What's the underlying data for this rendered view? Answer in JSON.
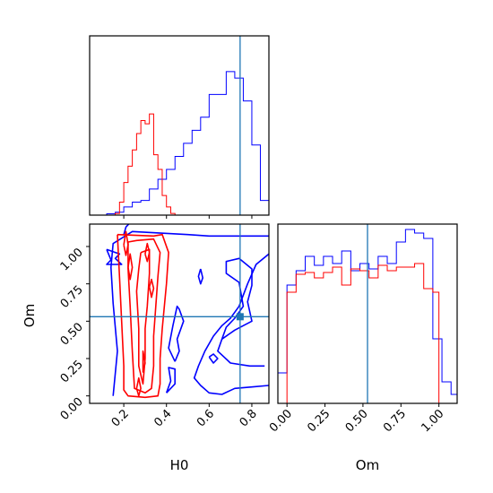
{
  "chart_data": {
    "type": "corner",
    "parameters": [
      "H0",
      "Om"
    ],
    "truth": {
      "H0": 0.745,
      "Om": 0.53
    },
    "colors": {
      "blue": "#0000ff",
      "red": "#ff0000",
      "truth": "#1f77b4"
    },
    "panels": [
      {
        "id": "H0-marginal",
        "type": "histogram",
        "xlim": [
          0.04,
          0.88
        ],
        "x_ticks": [
          0.2,
          0.4,
          0.6,
          0.8
        ],
        "series": [
          {
            "color": "blue",
            "edges": [
              0.12,
              0.16,
              0.2,
              0.24,
              0.28,
              0.32,
              0.36,
              0.4,
              0.44,
              0.48,
              0.52,
              0.56,
              0.6,
              0.64,
              0.68,
              0.72,
              0.76,
              0.8,
              0.84,
              0.88
            ],
            "counts": [
              0.008,
              0.018,
              0.05,
              0.08,
              0.09,
              0.16,
              0.22,
              0.28,
              0.36,
              0.44,
              0.52,
              0.6,
              0.74,
              0.74,
              0.88,
              0.84,
              0.7,
              0.43,
              0.09
            ]
          },
          {
            "color": "red",
            "edges": [
              0.16,
              0.18,
              0.2,
              0.22,
              0.24,
              0.26,
              0.28,
              0.3,
              0.32,
              0.34,
              0.36,
              0.38,
              0.4,
              0.42,
              0.44
            ],
            "counts": [
              0.01,
              0.08,
              0.2,
              0.3,
              0.4,
              0.5,
              0.58,
              0.56,
              0.62,
              0.37,
              0.28,
              0.12,
              0.05,
              0.01
            ]
          }
        ]
      },
      {
        "id": "H0-Om-joint",
        "type": "contour",
        "xlim": [
          0.04,
          0.88
        ],
        "ylim": [
          -0.05,
          1.15
        ],
        "x_ticks": [
          0.2,
          0.4,
          0.6,
          0.8
        ],
        "x_tick_labels": [
          "0.2",
          "0.4",
          "0.6",
          "0.8"
        ],
        "y_ticks": [
          0.0,
          0.25,
          0.5,
          0.75,
          1.0
        ],
        "y_tick_labels": [
          "0.00",
          "0.25",
          "0.50",
          "0.75",
          "1.00"
        ],
        "xlabel": "H0",
        "ylabel": "Om",
        "contours": [
          {
            "color": "blue",
            "points": [
              [
                0.15,
                0.0
              ],
              [
                0.17,
                0.3
              ],
              [
                0.15,
                0.62
              ],
              [
                0.14,
                0.86
              ],
              [
                0.15,
                1.02
              ],
              [
                0.24,
                1.1
              ],
              [
                0.5,
                1.08
              ],
              [
                0.6,
                1.07
              ],
              [
                0.7,
                1.07
              ],
              [
                0.88,
                1.07
              ]
            ]
          },
          {
            "color": "blue",
            "points": [
              [
                0.12,
                0.98
              ],
              [
                0.18,
                0.95
              ],
              [
                0.16,
                0.92
              ],
              [
                0.19,
                0.88
              ],
              [
                0.12,
                0.88
              ],
              [
                0.14,
                0.91
              ],
              [
                0.12,
                0.98
              ]
            ]
          },
          {
            "color": "blue",
            "points": [
              [
                0.2,
                1.08
              ],
              [
                0.21,
                1.13
              ],
              [
                0.23,
                1.16
              ]
            ]
          },
          {
            "color": "blue",
            "points": [
              [
                0.88,
                0.07
              ],
              [
                0.8,
                0.06
              ],
              [
                0.72,
                0.05
              ],
              [
                0.66,
                0.01
              ],
              [
                0.6,
                0.02
              ],
              [
                0.56,
                0.07
              ],
              [
                0.53,
                0.12
              ],
              [
                0.55,
                0.2
              ],
              [
                0.58,
                0.3
              ],
              [
                0.62,
                0.4
              ],
              [
                0.66,
                0.47
              ],
              [
                0.7,
                0.52
              ],
              [
                0.74,
                0.6
              ],
              [
                0.78,
                0.75
              ],
              [
                0.82,
                0.88
              ],
              [
                0.88,
                0.95
              ]
            ]
          },
          {
            "color": "blue",
            "points": [
              [
                0.86,
                0.2
              ],
              [
                0.79,
                0.2
              ],
              [
                0.7,
                0.22
              ],
              [
                0.64,
                0.3
              ],
              [
                0.66,
                0.38
              ],
              [
                0.72,
                0.44
              ],
              [
                0.76,
                0.47
              ],
              [
                0.8,
                0.5
              ],
              [
                0.78,
                0.63
              ],
              [
                0.8,
                0.74
              ],
              [
                0.8,
                0.85
              ],
              [
                0.74,
                0.92
              ],
              [
                0.68,
                0.9
              ],
              [
                0.68,
                0.82
              ],
              [
                0.74,
                0.76
              ],
              [
                0.76,
                0.6
              ],
              [
                0.72,
                0.52
              ],
              [
                0.68,
                0.46
              ],
              [
                0.66,
                0.38
              ]
            ]
          },
          {
            "color": "blue",
            "points": [
              [
                0.44,
                0.23
              ],
              [
                0.41,
                0.32
              ],
              [
                0.43,
                0.47
              ],
              [
                0.45,
                0.6
              ],
              [
                0.46,
                0.58
              ],
              [
                0.48,
                0.5
              ],
              [
                0.45,
                0.38
              ],
              [
                0.46,
                0.3
              ],
              [
                0.44,
                0.23
              ]
            ]
          },
          {
            "color": "blue",
            "points": [
              [
                0.56,
                0.85
              ],
              [
                0.57,
                0.79
              ],
              [
                0.56,
                0.75
              ],
              [
                0.55,
                0.8
              ],
              [
                0.56,
                0.85
              ]
            ]
          },
          {
            "color": "blue",
            "points": [
              [
                0.6,
                0.26
              ],
              [
                0.62,
                0.22
              ],
              [
                0.64,
                0.25
              ],
              [
                0.62,
                0.28
              ],
              [
                0.6,
                0.26
              ]
            ]
          },
          {
            "color": "blue",
            "points": [
              [
                0.4,
                0.02
              ],
              [
                0.42,
                0.1
              ],
              [
                0.41,
                0.19
              ],
              [
                0.44,
                0.18
              ],
              [
                0.44,
                0.08
              ],
              [
                0.4,
                0.02
              ]
            ]
          },
          {
            "color": "red",
            "points": [
              [
                0.17,
                1.08
              ],
              [
                0.34,
                1.07
              ],
              [
                0.38,
                1.08
              ],
              [
                0.41,
                0.96
              ],
              [
                0.4,
                0.75
              ],
              [
                0.38,
                0.45
              ],
              [
                0.37,
                0.25
              ],
              [
                0.37,
                0.08
              ],
              [
                0.36,
                0.0
              ],
              [
                0.3,
                -0.01
              ],
              [
                0.22,
                0.0
              ],
              [
                0.2,
                0.04
              ],
              [
                0.2,
                0.2
              ],
              [
                0.19,
                0.5
              ],
              [
                0.18,
                0.8
              ],
              [
                0.17,
                1.08
              ]
            ]
          },
          {
            "color": "red",
            "points": [
              [
                0.22,
                1.03
              ],
              [
                0.26,
                1.04
              ],
              [
                0.34,
                1.05
              ],
              [
                0.37,
                0.96
              ],
              [
                0.36,
                0.8
              ],
              [
                0.35,
                0.6
              ],
              [
                0.34,
                0.4
              ],
              [
                0.34,
                0.2
              ],
              [
                0.33,
                0.05
              ],
              [
                0.3,
                0.02
              ],
              [
                0.25,
                0.05
              ],
              [
                0.24,
                0.3
              ],
              [
                0.23,
                0.6
              ],
              [
                0.22,
                0.85
              ],
              [
                0.22,
                1.03
              ]
            ]
          },
          {
            "color": "red",
            "points": [
              [
                0.28,
                0.96
              ],
              [
                0.32,
                0.98
              ],
              [
                0.32,
                0.82
              ],
              [
                0.31,
                0.6
              ],
              [
                0.3,
                0.45
              ],
              [
                0.3,
                0.25
              ],
              [
                0.29,
                0.08
              ],
              [
                0.27,
                0.2
              ],
              [
                0.27,
                0.45
              ],
              [
                0.26,
                0.7
              ],
              [
                0.27,
                0.85
              ],
              [
                0.28,
                0.96
              ]
            ]
          },
          {
            "color": "red",
            "points": [
              [
                0.22,
                0.86
              ],
              [
                0.23,
                0.95
              ],
              [
                0.24,
                0.86
              ],
              [
                0.23,
                0.78
              ],
              [
                0.22,
                0.86
              ]
            ]
          },
          {
            "color": "red",
            "points": [
              [
                0.2,
                1.01
              ],
              [
                0.21,
                1.1
              ],
              [
                0.22,
                1.01
              ],
              [
                0.21,
                0.94
              ],
              [
                0.2,
                1.01
              ]
            ]
          },
          {
            "color": "red",
            "points": [
              [
                0.32,
                0.73
              ],
              [
                0.33,
                0.78
              ],
              [
                0.34,
                0.72
              ],
              [
                0.33,
                0.66
              ],
              [
                0.32,
                0.73
              ]
            ]
          },
          {
            "color": "red",
            "points": [
              [
                0.3,
                0.95
              ],
              [
                0.31,
                1.02
              ],
              [
                0.32,
                0.96
              ],
              [
                0.31,
                0.9
              ],
              [
                0.3,
                0.95
              ]
            ]
          },
          {
            "color": "red",
            "points": [
              [
                0.29,
                0.22
              ],
              [
                0.29,
                0.3
              ],
              [
                0.3,
                0.22
              ],
              [
                0.29,
                0.16
              ],
              [
                0.29,
                0.22
              ]
            ]
          },
          {
            "color": "red",
            "points": [
              [
                0.26,
                0.05
              ],
              [
                0.27,
                0.12
              ],
              [
                0.28,
                0.05
              ],
              [
                0.27,
                0.0
              ],
              [
                0.26,
                0.05
              ]
            ]
          }
        ]
      },
      {
        "id": "Om-marginal",
        "type": "histogram",
        "xlim": [
          -0.06,
          1.12
        ],
        "x_ticks": [
          0.0,
          0.25,
          0.5,
          0.75,
          1.0
        ],
        "x_tick_labels": [
          "0.00",
          "0.25",
          "0.50",
          "0.75",
          "1.00"
        ],
        "xlabel": "Om",
        "series": [
          {
            "color": "blue",
            "edges": [
              -0.06,
              0.0,
              0.06,
              0.12,
              0.18,
              0.24,
              0.3,
              0.36,
              0.42,
              0.48,
              0.54,
              0.6,
              0.66,
              0.72,
              0.78,
              0.84,
              0.9,
              0.96,
              1.02,
              1.08,
              1.12
            ],
            "counts": [
              0.17,
              0.66,
              0.74,
              0.82,
              0.77,
              0.82,
              0.78,
              0.85,
              0.74,
              0.78,
              0.75,
              0.82,
              0.78,
              0.9,
              0.97,
              0.95,
              0.92,
              0.36,
              0.12,
              0.05
            ]
          },
          {
            "color": "red",
            "edges": [
              0.0,
              0.06,
              0.12,
              0.18,
              0.24,
              0.3,
              0.36,
              0.42,
              0.48,
              0.54,
              0.6,
              0.66,
              0.72,
              0.78,
              0.84,
              0.9,
              0.96,
              1.0
            ],
            "counts": [
              0.62,
              0.72,
              0.73,
              0.7,
              0.73,
              0.76,
              0.66,
              0.75,
              0.74,
              0.7,
              0.77,
              0.74,
              0.76,
              0.76,
              0.78,
              0.64,
              0.62
            ]
          }
        ]
      }
    ]
  }
}
